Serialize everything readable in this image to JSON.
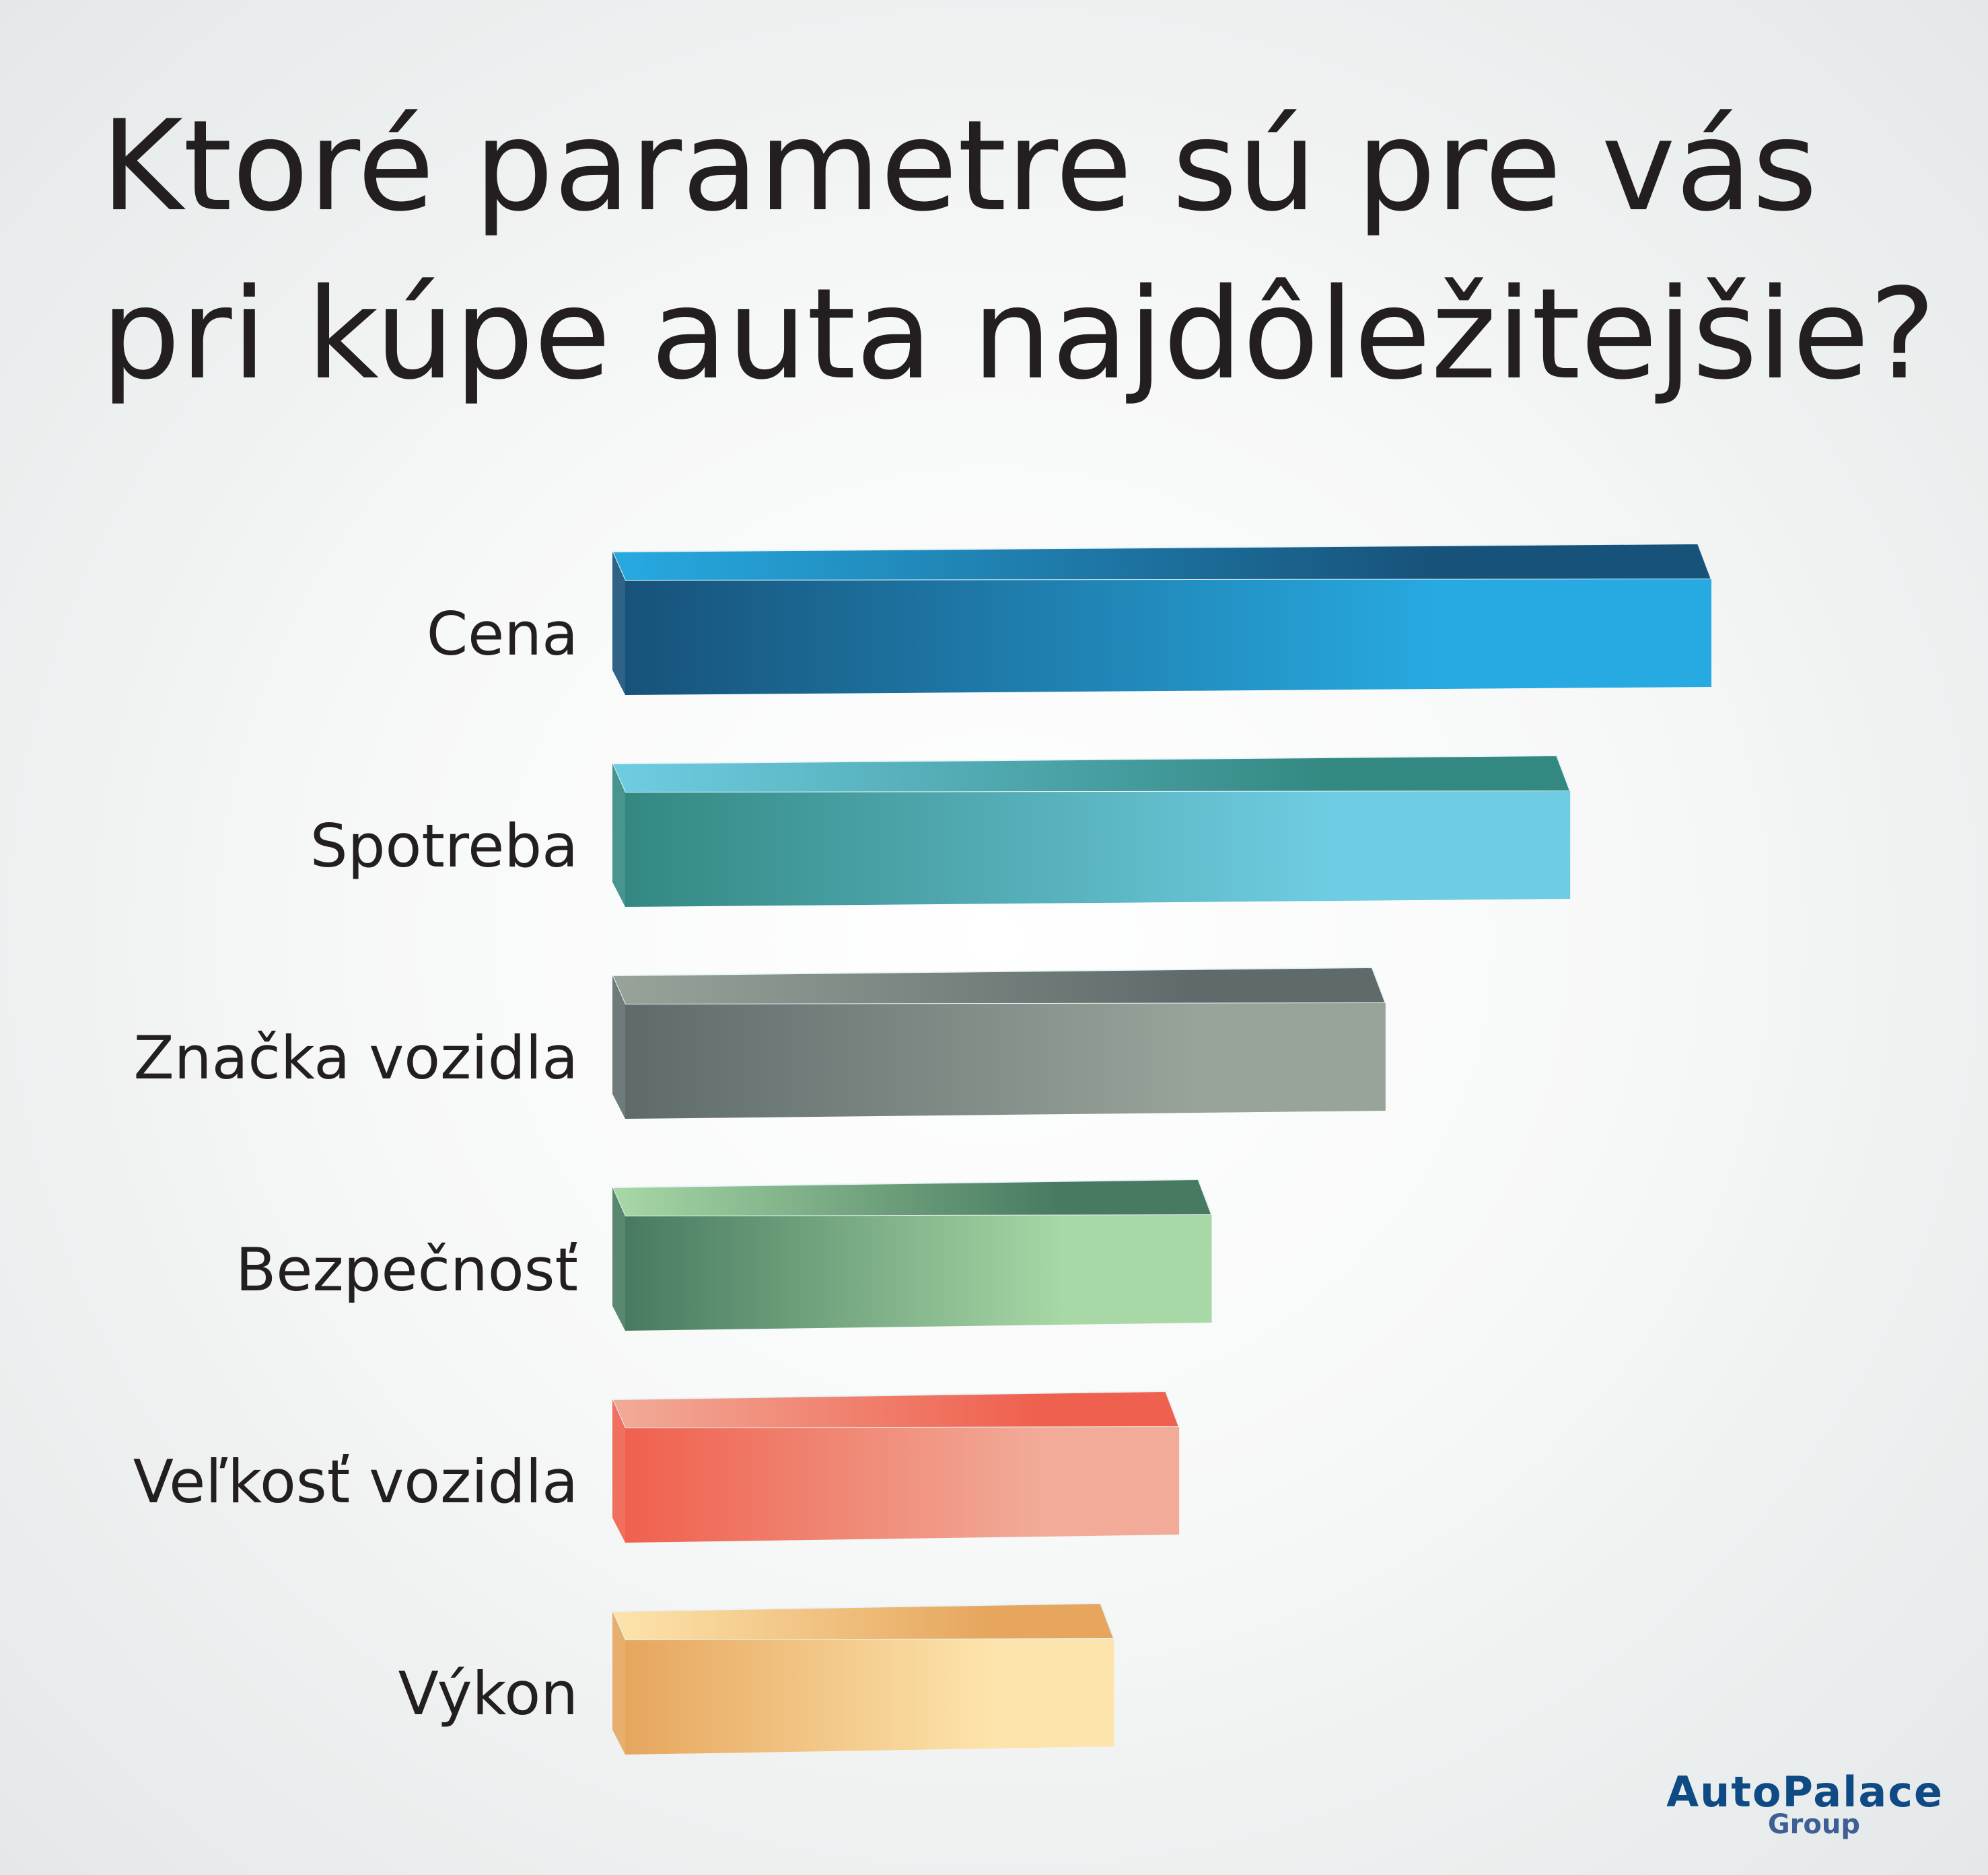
{
  "chart_data": {
    "type": "bar",
    "orientation": "horizontal",
    "title": "Ktoré parametre sú pre vás pri kúpe auta najdôležitejšie?",
    "title_lines": [
      "Ktoré parametre sú pre vás",
      "pri kúpe auta najdôležitejšie?"
    ],
    "categories": [
      "Cena",
      "Spotreba",
      "Značka vozidla",
      "Bezpečnosť",
      "Veľkosť vozidla",
      "Výkon"
    ],
    "values": [
      100,
      87,
      70,
      54,
      51,
      45
    ],
    "value_unit": "relative length (% of longest bar, estimated; no axis shown)",
    "xlabel": "",
    "ylabel": "",
    "xlim": [
      0,
      100
    ],
    "grid": false,
    "legend": "none",
    "colors": [
      {
        "dark": "#17527a",
        "light": "#27aae1"
      },
      {
        "dark": "#348882",
        "light": "#6fcde3"
      },
      {
        "dark": "#5f6b6b",
        "light": "#98a39a"
      },
      {
        "dark": "#477a60",
        "light": "#a8d8a6"
      },
      {
        "dark": "#f0604e",
        "light": "#f1ab98"
      },
      {
        "dark": "#e6a65e",
        "light": "#fde4ac"
      }
    ]
  },
  "logo": {
    "name": "AutoPalace",
    "sub": "Group",
    "color": "#0f4a85"
  }
}
